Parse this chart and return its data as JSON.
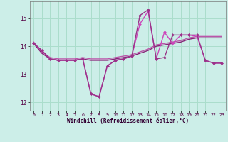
{
  "background_color": "#cceee8",
  "grid_color": "#aaddcc",
  "xlim": [
    -0.5,
    23.5
  ],
  "ylim": [
    11.7,
    15.6
  ],
  "yticks": [
    12,
    13,
    14,
    15
  ],
  "xticks": [
    0,
    1,
    2,
    3,
    4,
    5,
    6,
    7,
    8,
    9,
    10,
    11,
    12,
    13,
    14,
    15,
    16,
    17,
    18,
    19,
    20,
    21,
    22,
    23
  ],
  "xlabel": "Windchill (Refroidissement éolien,°C)",
  "series": [
    {
      "x": [
        0,
        1,
        2,
        3,
        4,
        5,
        6,
        7,
        8,
        9,
        10,
        11,
        12,
        13,
        14,
        15,
        16,
        17,
        18,
        19,
        20,
        21,
        22,
        23
      ],
      "y": [
        14.15,
        13.8,
        13.6,
        13.55,
        13.55,
        13.55,
        13.6,
        13.55,
        13.55,
        13.55,
        13.6,
        13.65,
        13.7,
        13.8,
        13.9,
        14.05,
        14.1,
        14.15,
        14.2,
        14.3,
        14.35,
        14.35,
        14.35,
        14.35
      ],
      "color": "#bb55aa",
      "lw": 1.0,
      "marker": null
    },
    {
      "x": [
        0,
        1,
        2,
        3,
        4,
        5,
        6,
        7,
        8,
        9,
        10,
        11,
        12,
        13,
        14,
        15,
        16,
        17,
        18,
        19,
        20,
        21,
        22,
        23
      ],
      "y": [
        14.1,
        13.75,
        13.55,
        13.5,
        13.5,
        13.5,
        13.55,
        13.5,
        13.5,
        13.5,
        13.55,
        13.6,
        13.65,
        13.75,
        13.85,
        14.0,
        14.05,
        14.1,
        14.15,
        14.25,
        14.3,
        14.3,
        14.3,
        14.3
      ],
      "color": "#882277",
      "lw": 1.0,
      "marker": null
    },
    {
      "x": [
        0,
        1,
        2,
        3,
        4,
        5,
        6,
        7,
        8,
        9,
        10,
        11,
        12,
        13,
        14,
        15,
        16,
        17,
        18,
        19,
        20,
        21,
        22,
        23
      ],
      "y": [
        14.1,
        13.85,
        13.55,
        13.5,
        13.5,
        13.5,
        13.55,
        12.3,
        12.2,
        13.3,
        13.5,
        13.55,
        13.65,
        14.8,
        15.25,
        13.55,
        14.5,
        14.1,
        14.4,
        14.4,
        14.35,
        13.5,
        13.4,
        13.4
      ],
      "color": "#cc44bb",
      "lw": 1.0,
      "marker": "D",
      "ms": 2.0
    },
    {
      "x": [
        0,
        1,
        2,
        3,
        4,
        5,
        6,
        7,
        8,
        9,
        10,
        11,
        12,
        13,
        14,
        15,
        16,
        17,
        18,
        19,
        20,
        21,
        22,
        23
      ],
      "y": [
        14.1,
        13.85,
        13.55,
        13.5,
        13.5,
        13.5,
        13.55,
        12.3,
        12.2,
        13.3,
        13.5,
        13.55,
        13.65,
        15.1,
        15.3,
        13.55,
        13.6,
        14.4,
        14.4,
        14.4,
        14.4,
        13.5,
        13.4,
        13.4
      ],
      "color": "#993388",
      "lw": 1.0,
      "marker": "D",
      "ms": 2.0
    }
  ]
}
